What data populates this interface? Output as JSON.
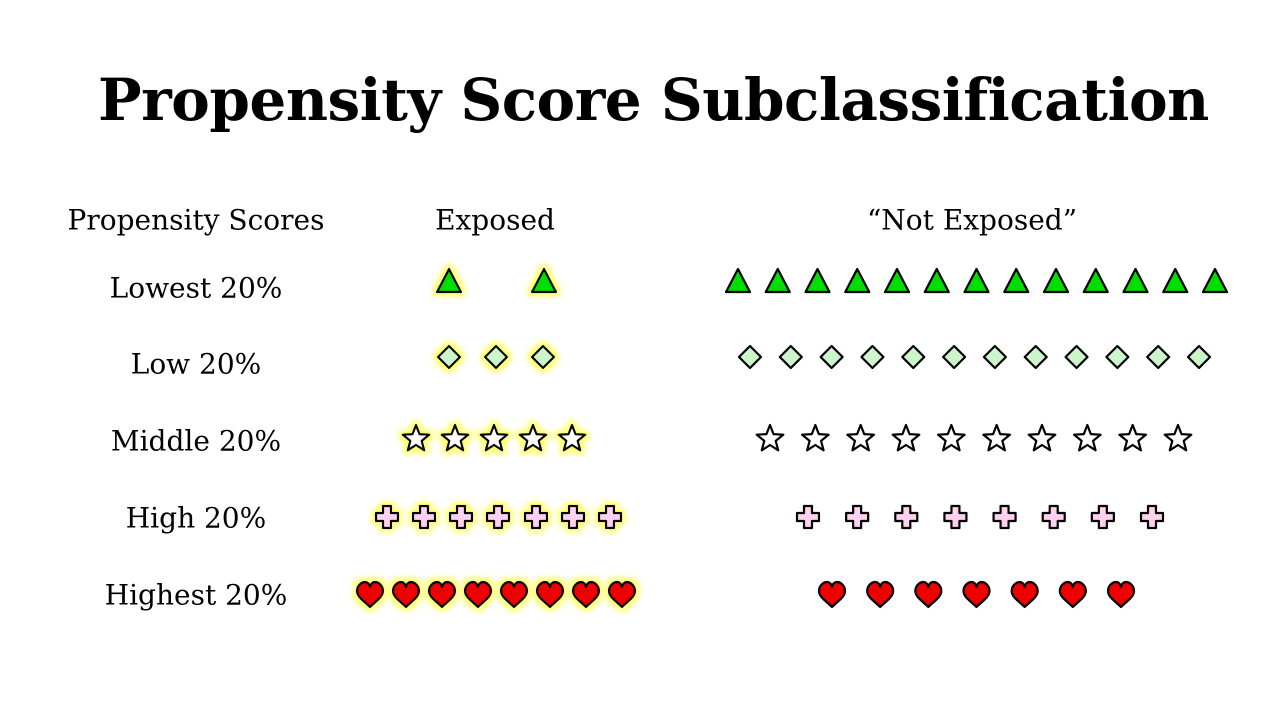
{
  "title": "Propensity Score Subclassification",
  "headers": {
    "scores": "Propensity Scores",
    "exposed": "Exposed",
    "not_exposed": "“Not Exposed”"
  },
  "colors": {
    "highlight": "#ffff66",
    "outline": "#000000"
  },
  "rows": [
    {
      "label": "Lowest 20%",
      "shape": "triangle",
      "icon": "triangle-icon",
      "fill": "#00dd00",
      "exposed_count": 2,
      "not_exposed_count": 13
    },
    {
      "label": "Low 20%",
      "shape": "diamond",
      "icon": "diamond-icon",
      "fill": "#ccf5cc",
      "exposed_count": 3,
      "not_exposed_count": 12
    },
    {
      "label": "Middle 20%",
      "shape": "star",
      "icon": "star-icon",
      "fill": "#ffffff",
      "exposed_count": 5,
      "not_exposed_count": 10
    },
    {
      "label": "High 20%",
      "shape": "cross",
      "icon": "cross-icon",
      "fill": "#ffd0f0",
      "exposed_count": 7,
      "not_exposed_count": 8
    },
    {
      "label": "Highest 20%",
      "shape": "heart",
      "icon": "heart-icon",
      "fill": "#ee0000",
      "exposed_count": 8,
      "not_exposed_count": 7
    }
  ]
}
